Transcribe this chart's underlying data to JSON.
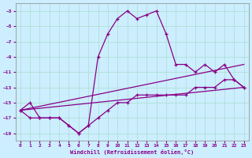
{
  "xlabel": "Windchill (Refroidissement éolien,°C)",
  "background_color": "#cceeff",
  "grid_color": "#aaddcc",
  "line_color": "#880088",
  "x_hours": [
    0,
    1,
    2,
    3,
    4,
    5,
    6,
    7,
    8,
    9,
    10,
    11,
    12,
    13,
    14,
    15,
    16,
    17,
    18,
    19,
    20,
    21,
    22,
    23
  ],
  "windchill": [
    -16,
    -15,
    -17,
    -17,
    -17,
    -18,
    -19,
    -18,
    -9,
    -6,
    -4,
    -3,
    -4,
    -3.5,
    -3,
    -6,
    -10,
    -10,
    -11,
    -10,
    -11,
    -10,
    -12,
    -13
  ],
  "temp": [
    -16,
    -17,
    -17,
    -17,
    -17,
    -18,
    -19,
    -18,
    -17,
    -16,
    -15,
    -15,
    -14,
    -14,
    -14,
    -14,
    -14,
    -14,
    -13,
    -13,
    -13,
    -12,
    -12,
    -13
  ],
  "line1_x": [
    0,
    23
  ],
  "line1_y": [
    -16,
    -10
  ],
  "line2_x": [
    0,
    23
  ],
  "line2_y": [
    -16,
    -13
  ],
  "xlim": [
    -0.5,
    23.5
  ],
  "ylim": [
    -20,
    -2
  ],
  "yticks": [
    -19,
    -17,
    -15,
    -13,
    -11,
    -9,
    -7,
    -5,
    -3
  ],
  "xticks": [
    0,
    1,
    2,
    3,
    4,
    5,
    6,
    7,
    8,
    9,
    10,
    11,
    12,
    13,
    14,
    15,
    16,
    17,
    18,
    19,
    20,
    21,
    22,
    23
  ]
}
